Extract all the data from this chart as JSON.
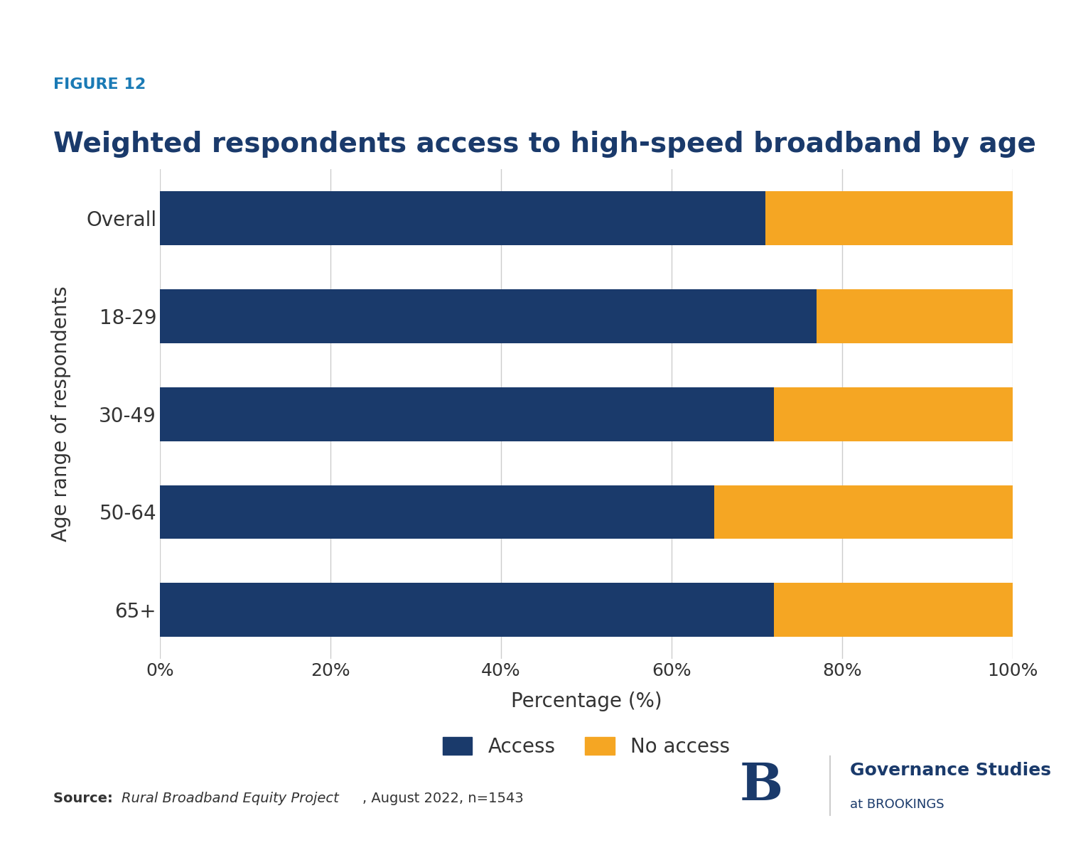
{
  "categories": [
    "65+",
    "50-64",
    "30-49",
    "18-29",
    "Overall"
  ],
  "access": [
    72,
    65,
    72,
    77,
    71
  ],
  "no_access": [
    28,
    35,
    28,
    23,
    29
  ],
  "color_access": "#1a3a6b",
  "color_no_access": "#f5a623",
  "figure_label": "FIGURE 12",
  "title": "Weighted respondents access to high-speed broadband by age",
  "ylabel": "Age range of respondents",
  "xlabel": "Percentage (%)",
  "legend_access": "Access",
  "legend_no_access": "No access",
  "xlim": [
    0,
    100
  ],
  "xticks": [
    0,
    20,
    40,
    60,
    80,
    100
  ],
  "xticklabels": [
    "0%",
    "20%",
    "40%",
    "60%",
    "80%",
    "100%"
  ],
  "background_color": "#ffffff",
  "grid_color": "#cccccc",
  "title_color": "#1a3a6b",
  "figure_label_color": "#1a7ab5",
  "tick_label_color": "#333333",
  "bar_height": 0.55
}
